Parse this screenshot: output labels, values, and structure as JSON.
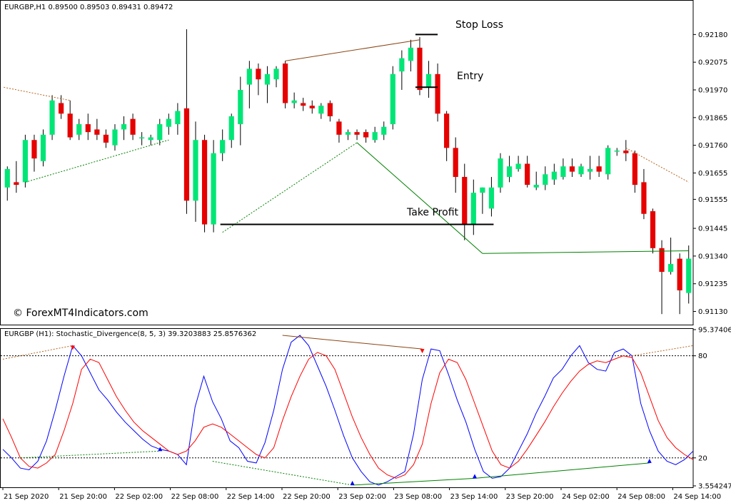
{
  "header": {
    "symbol_info": "EURGBP,H1  0.89500 0.89503 0.89431 0.89472"
  },
  "indicator": {
    "info": "EURGBP (H1):  Stochastic_Divergence(8, 5, 3) 39.3203883 25.8576362"
  },
  "watermark": "© ForexMT4Indicators.com",
  "annotations": {
    "stop_loss": "Stop Loss",
    "entry": "Entry",
    "take_profit": "Take Profit"
  },
  "colors": {
    "bull": "#00e676",
    "bear": "#e60000",
    "main_line": "#0000ff",
    "signal_line": "#ff0000",
    "bull_divergence": "#008000",
    "bear_divergence": "#8b4513",
    "level_line": "#000000"
  },
  "chart_data": [
    {
      "type": "candlestick",
      "title": "EURGBP,H1",
      "ylim": [
        0.9108,
        0.923
      ],
      "y_ticks": [
        "0.92180",
        "0.92075",
        "0.91970",
        "0.91865",
        "0.91760",
        "0.91655",
        "0.91555",
        "0.91445",
        "0.91340",
        "0.91235",
        "0.91130"
      ],
      "x_ticks": [
        "21 Sep 2020",
        "21 Sep 20:00",
        "22 Sep 02:00",
        "22 Sep 08:00",
        "22 Sep 14:00",
        "22 Sep 20:00",
        "23 Sep 02:00",
        "23 Sep 08:00",
        "23 Sep 14:00",
        "23 Sep 20:00",
        "24 Sep 02:00",
        "24 Sep 08:00",
        "24 Sep 14:00"
      ],
      "candles": [
        [
          0.916,
          0.9168,
          0.9155,
          0.9167
        ],
        [
          0.9162,
          0.917,
          0.9158,
          0.9161
        ],
        [
          0.9162,
          0.918,
          0.916,
          0.9178
        ],
        [
          0.9178,
          0.918,
          0.9166,
          0.9171
        ],
        [
          0.917,
          0.9182,
          0.9168,
          0.918
        ],
        [
          0.918,
          0.9195,
          0.9178,
          0.9193
        ],
        [
          0.9192,
          0.9195,
          0.9186,
          0.9188
        ],
        [
          0.9188,
          0.9193,
          0.9178,
          0.9179
        ],
        [
          0.918,
          0.9186,
          0.9178,
          0.9184
        ],
        [
          0.9184,
          0.9188,
          0.9178,
          0.9181
        ],
        [
          0.9182,
          0.9186,
          0.9178,
          0.918
        ],
        [
          0.918,
          0.9182,
          0.9175,
          0.9177
        ],
        [
          0.9176,
          0.9184,
          0.9174,
          0.9182
        ],
        [
          0.9182,
          0.9187,
          0.9178,
          0.9184
        ],
        [
          0.9186,
          0.9188,
          0.9178,
          0.918
        ],
        [
          0.9179,
          0.9181,
          0.9176,
          0.9179
        ],
        [
          0.9178,
          0.918,
          0.9176,
          0.9179
        ],
        [
          0.9178,
          0.9186,
          0.9176,
          0.9184
        ],
        [
          0.9183,
          0.9188,
          0.918,
          0.9186
        ],
        [
          0.9184,
          0.9192,
          0.918,
          0.9189
        ],
        [
          0.919,
          0.922,
          0.915,
          0.9155
        ],
        [
          0.9155,
          0.9185,
          0.9147,
          0.9178
        ],
        [
          0.9178,
          0.918,
          0.9143,
          0.9146
        ],
        [
          0.9146,
          0.9178,
          0.9143,
          0.9173
        ],
        [
          0.9173,
          0.9182,
          0.917,
          0.9178
        ],
        [
          0.9178,
          0.9188,
          0.9175,
          0.9187
        ],
        [
          0.9184,
          0.9202,
          0.9176,
          0.9197
        ],
        [
          0.9199,
          0.9208,
          0.919,
          0.9205
        ],
        [
          0.9205,
          0.9207,
          0.9195,
          0.9201
        ],
        [
          0.9199,
          0.9206,
          0.9192,
          0.9203
        ],
        [
          0.9201,
          0.9206,
          0.9198,
          0.9205
        ],
        [
          0.9207,
          0.9208,
          0.919,
          0.9192
        ],
        [
          0.9192,
          0.9196,
          0.919,
          0.9193
        ],
        [
          0.9192,
          0.9194,
          0.9189,
          0.9191
        ],
        [
          0.9191,
          0.9193,
          0.9188,
          0.919
        ],
        [
          0.9188,
          0.9192,
          0.9186,
          0.9191
        ],
        [
          0.9192,
          0.9193,
          0.9185,
          0.9187
        ],
        [
          0.9185,
          0.9186,
          0.9177,
          0.918
        ],
        [
          0.918,
          0.9182,
          0.9178,
          0.9181
        ],
        [
          0.9181,
          0.9182,
          0.9178,
          0.918
        ],
        [
          0.9181,
          0.9182,
          0.9177,
          0.9179
        ],
        [
          0.9178,
          0.9183,
          0.9177,
          0.9181
        ],
        [
          0.918,
          0.9185,
          0.9178,
          0.9183
        ],
        [
          0.9184,
          0.9206,
          0.9182,
          0.9203
        ],
        [
          0.9204,
          0.9212,
          0.9197,
          0.9209
        ],
        [
          0.9208,
          0.9216,
          0.9204,
          0.9213
        ],
        [
          0.9213,
          0.9217,
          0.9195,
          0.9197
        ],
        [
          0.9198,
          0.9208,
          0.9194,
          0.9203
        ],
        [
          0.9203,
          0.9207,
          0.9185,
          0.9188
        ],
        [
          0.9188,
          0.9189,
          0.917,
          0.9175
        ],
        [
          0.9175,
          0.9179,
          0.9158,
          0.9164
        ],
        [
          0.9164,
          0.9169,
          0.914,
          0.9146
        ],
        [
          0.9146,
          0.9163,
          0.9142,
          0.9158
        ],
        [
          0.9158,
          0.916,
          0.915,
          0.916
        ],
        [
          0.9152,
          0.9164,
          0.9149,
          0.916
        ],
        [
          0.916,
          0.9173,
          0.9158,
          0.9171
        ],
        [
          0.9164,
          0.9172,
          0.9162,
          0.9168
        ],
        [
          0.9167,
          0.9172,
          0.9166,
          0.9169
        ],
        [
          0.9169,
          0.9172,
          0.916,
          0.9161
        ],
        [
          0.916,
          0.9166,
          0.9159,
          0.9161
        ],
        [
          0.9161,
          0.9168,
          0.9159,
          0.9165
        ],
        [
          0.9163,
          0.9169,
          0.9161,
          0.9166
        ],
        [
          0.9164,
          0.9171,
          0.9163,
          0.9168
        ],
        [
          0.9168,
          0.9171,
          0.9164,
          0.9166
        ],
        [
          0.9165,
          0.9169,
          0.9164,
          0.9168
        ],
        [
          0.9166,
          0.9172,
          0.9163,
          0.9167
        ],
        [
          0.9168,
          0.9172,
          0.9164,
          0.9166
        ],
        [
          0.9165,
          0.9176,
          0.9163,
          0.9175
        ],
        [
          0.9174,
          0.9175,
          0.9172,
          0.9174
        ],
        [
          0.9174,
          0.9178,
          0.917,
          0.9173
        ],
        [
          0.9173,
          0.9174,
          0.9158,
          0.9161
        ],
        [
          0.9162,
          0.9167,
          0.9148,
          0.915
        ],
        [
          0.9151,
          0.9152,
          0.9135,
          0.9137
        ],
        [
          0.9137,
          0.914,
          0.9112,
          0.9128
        ],
        [
          0.9128,
          0.9141,
          0.9127,
          0.9131
        ],
        [
          0.9133,
          0.9135,
          0.9112,
          0.9121
        ],
        [
          0.912,
          0.9138,
          0.9116,
          0.9133
        ]
      ],
      "levels": {
        "stop_loss": 0.9218,
        "entry": 0.9198,
        "take_profit": 0.9146
      }
    },
    {
      "type": "line",
      "title": "Stochastic_Divergence(8, 5, 3)",
      "ylim": [
        3.5542473,
        95.374062
      ],
      "y_ticks": [
        "95.374062",
        "80",
        "20",
        "3.5542473"
      ],
      "levels": [
        80,
        20
      ],
      "series": [
        {
          "values": [
            25,
            20,
            14,
            13,
            18,
            30,
            48,
            68,
            86,
            80,
            70,
            60,
            54,
            47,
            41,
            36,
            31,
            27,
            25,
            24,
            22,
            16,
            50,
            68,
            53,
            43,
            30,
            26,
            18,
            17,
            29,
            48,
            72,
            88,
            92,
            86,
            74,
            62,
            48,
            33,
            20,
            12,
            6,
            4,
            6,
            9,
            12,
            34,
            66,
            84,
            83,
            69,
            54,
            41,
            25,
            12,
            8,
            9,
            14,
            24,
            34,
            46,
            56,
            67,
            72,
            80,
            86,
            76,
            72,
            71,
            82,
            84,
            80,
            52,
            36,
            24,
            18,
            16,
            19,
            24
          ]
        },
        {
          "values": [
            43,
            32,
            20,
            15,
            14,
            17,
            22,
            36,
            52,
            72,
            78,
            76,
            66,
            56,
            48,
            41,
            36,
            32,
            28,
            24,
            22,
            24,
            30,
            38,
            40,
            38,
            34,
            30,
            26,
            22,
            20,
            26,
            42,
            56,
            68,
            78,
            82,
            80,
            72,
            58,
            44,
            32,
            22,
            14,
            10,
            8,
            10,
            16,
            28,
            52,
            70,
            78,
            76,
            66,
            52,
            38,
            24,
            16,
            14,
            18,
            25,
            33,
            41,
            50,
            58,
            65,
            71,
            75,
            77,
            76,
            78,
            80,
            79,
            70,
            56,
            42,
            32,
            26,
            22,
            19
          ]
        }
      ]
    }
  ]
}
